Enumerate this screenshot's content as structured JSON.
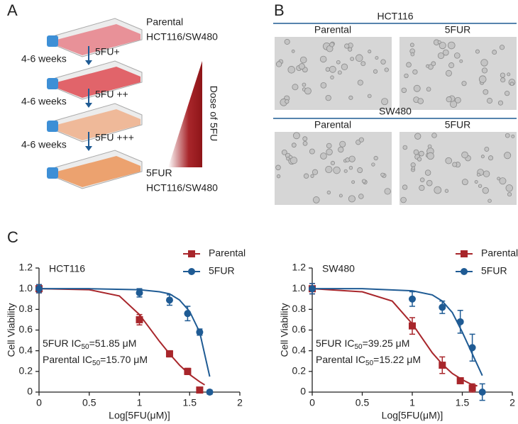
{
  "panel_a": {
    "label": "A",
    "start_name": "Parental",
    "start_line": "HCT116/SW480",
    "steps": [
      {
        "time": "4-6 weeks",
        "dose": "5FU+"
      },
      {
        "time": "4-6 weeks",
        "dose": "5FU ++"
      },
      {
        "time": "4-6 weeks",
        "dose": "5FU +++"
      }
    ],
    "dose_label": "Dose of 5FU",
    "end_name": "5FUR",
    "end_line": "HCT116/SW480"
  },
  "panel_b": {
    "label": "B",
    "groups": [
      {
        "title": "HCT116",
        "columns": [
          "Parental",
          "5FUR"
        ]
      },
      {
        "title": "SW480",
        "columns": [
          "Parental",
          "5FUR"
        ]
      }
    ]
  },
  "panel_c": {
    "label": "C"
  },
  "chart_data": [
    {
      "type": "scatter",
      "title": "HCT116",
      "xlabel": "Log[5FU(μM)]",
      "ylabel": "Cell Viability",
      "xlim": [
        0,
        2
      ],
      "xticks": [
        0,
        0.5,
        1,
        1.5,
        2
      ],
      "ylim": [
        0,
        1.2
      ],
      "yticks": [
        0,
        0.2,
        0.4,
        0.6,
        0.8,
        {
          "value": 1,
          "label": "1.0"
        },
        1.2
      ],
      "legend": "upper right",
      "series": [
        {
          "name": "Parental",
          "color": "#a8262b",
          "marker": "square",
          "x": [
            0,
            1,
            1.3,
            1.48,
            1.6
          ],
          "values": [
            1.0,
            0.7,
            0.37,
            0.2,
            0.02
          ],
          "errors": [
            0.04,
            0.05,
            0.03,
            0.03,
            0.01
          ]
        },
        {
          "name": "5FUR",
          "color": "#1f5b94",
          "marker": "circle",
          "x": [
            0,
            1,
            1.3,
            1.48,
            1.6,
            1.7
          ],
          "values": [
            1.0,
            0.96,
            0.89,
            0.76,
            0.58,
            0.0
          ],
          "errors": [
            0.04,
            0.04,
            0.05,
            0.07,
            0.03,
            0.02
          ]
        }
      ],
      "fits": [
        {
          "color": "#a8262b",
          "x": [
            0,
            0.5,
            0.8,
            1.0,
            1.1,
            1.2,
            1.3,
            1.4,
            1.5,
            1.6,
            1.65
          ],
          "values": [
            1.0,
            0.99,
            0.93,
            0.75,
            0.62,
            0.49,
            0.37,
            0.26,
            0.17,
            0.1,
            0.07
          ]
        },
        {
          "color": "#1f5b94",
          "x": [
            0,
            0.5,
            1.0,
            1.2,
            1.3,
            1.4,
            1.5,
            1.6,
            1.7
          ],
          "values": [
            1.0,
            1.0,
            0.99,
            0.97,
            0.95,
            0.89,
            0.78,
            0.58,
            0.15
          ]
        }
      ],
      "annotations": [
        {
          "prefix": "5FUR IC",
          "sub": "50",
          "suffix": "=51.85 μM"
        },
        {
          "prefix": "Parental IC",
          "sub": "50",
          "suffix": "=15.70 μM"
        }
      ]
    },
    {
      "type": "scatter",
      "title": "SW480",
      "xlabel": "Log[5FU(μM)]",
      "ylabel": "Cell Viability",
      "xlim": [
        0,
        2
      ],
      "xticks": [
        0,
        0.5,
        1,
        1.5,
        2
      ],
      "ylim": [
        0,
        1.2
      ],
      "yticks": [
        0,
        0.2,
        0.4,
        0.6,
        0.8,
        {
          "value": 1,
          "label": "1.0"
        },
        1.2
      ],
      "legend": "upper right",
      "series": [
        {
          "name": "Parental",
          "color": "#a8262b",
          "marker": "square",
          "x": [
            0,
            1,
            1.3,
            1.48,
            1.6
          ],
          "values": [
            1.0,
            0.64,
            0.26,
            0.11,
            0.04
          ],
          "errors": [
            0.05,
            0.08,
            0.08,
            0.02,
            0.04
          ]
        },
        {
          "name": "5FUR",
          "color": "#1f5b94",
          "marker": "circle",
          "x": [
            0,
            1,
            1.3,
            1.48,
            1.6,
            1.7
          ],
          "values": [
            1.0,
            0.9,
            0.82,
            0.68,
            0.43,
            0.0
          ],
          "errors": [
            0.05,
            0.07,
            0.06,
            0.11,
            0.13,
            0.08
          ]
        }
      ],
      "fits": [
        {
          "color": "#a8262b",
          "x": [
            0,
            0.5,
            0.8,
            1.0,
            1.1,
            1.2,
            1.3,
            1.4,
            1.5,
            1.6,
            1.65
          ],
          "values": [
            1.0,
            0.97,
            0.88,
            0.66,
            0.52,
            0.38,
            0.27,
            0.18,
            0.12,
            0.07,
            0.06
          ]
        },
        {
          "color": "#1f5b94",
          "x": [
            0,
            0.5,
            1.0,
            1.2,
            1.3,
            1.4,
            1.5,
            1.6,
            1.7
          ],
          "values": [
            1.0,
            1.0,
            0.98,
            0.94,
            0.88,
            0.77,
            0.58,
            0.37,
            0.16
          ]
        }
      ],
      "annotations": [
        {
          "prefix": "5FUR IC",
          "sub": "50",
          "suffix": "=39.25 μM"
        },
        {
          "prefix": "Parental IC",
          "sub": "50",
          "suffix": "=15.22 μM"
        }
      ]
    }
  ]
}
